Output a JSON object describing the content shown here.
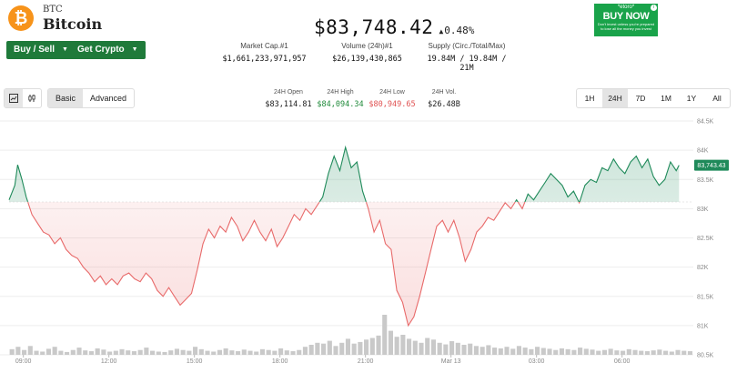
{
  "coin": {
    "symbol": "BTC",
    "name": "Bitcoin",
    "logo_glyph": "₿",
    "logo_color": "#f7931a"
  },
  "buttons": {
    "buy_sell": "Buy / Sell",
    "get_crypto": "Get Crypto"
  },
  "price": {
    "value": "$83,748.42",
    "change": "0.48%",
    "change_icon": "triangle-up-icon"
  },
  "stats": {
    "market_cap_label": "Market Cap.#1",
    "market_cap_value": "$1,661,233,971,957",
    "volume_label": "Volume (24h)#1",
    "volume_value": "$26,139,430,865",
    "supply_label": "Supply (Circ./Total/Max)",
    "supply_value": "19.84M / 19.84M / 21M"
  },
  "ad": {
    "brand": "*etoro*",
    "cta": "BUY NOW",
    "warning": "Don't invest unless you're prepared to lose all the money you invest",
    "adchoice_icon": "info-icon",
    "color": "#19a34a"
  },
  "controls": {
    "chart_icons": [
      "line-chart-icon",
      "candlestick-icon"
    ],
    "modes": [
      "Basic",
      "Advanced"
    ],
    "active_mode": "Basic",
    "ranges": [
      "1H",
      "24H",
      "7D",
      "1M",
      "1Y",
      "All"
    ],
    "active_range": "24H"
  },
  "ohlc": {
    "open_label": "24H Open",
    "open_value": "$83,114.81",
    "high_label": "24H High",
    "high_value": "$84,094.34",
    "low_label": "24H Low",
    "low_value": "$80,949.65",
    "vol_label": "24H Vol.",
    "vol_value": "$26.48B",
    "high_color": "#1f8a3a",
    "low_color": "#e05252"
  },
  "chart_data": {
    "type": "line",
    "baseline": 83114.81,
    "last_value_label": "83,743.43",
    "up_color": "#1f8a5a",
    "down_color": "#e86a6a",
    "ylim": [
      80500,
      84500
    ],
    "y_ticks": [
      84500,
      84000,
      83500,
      83000,
      82500,
      82000,
      81500,
      81000,
      80500
    ],
    "y_tick_labels": [
      "84.5K",
      "84K",
      "83.5K",
      "83K",
      "82.5K",
      "82K",
      "81.5K",
      "81K",
      "80.5K"
    ],
    "x_tick_labels": [
      "09:00",
      "12:00",
      "15:00",
      "18:00",
      "21:00",
      "Mar 13",
      "03:00",
      "06:00"
    ],
    "x_tick_hours": [
      0,
      3,
      6,
      9,
      12,
      15,
      18,
      21
    ],
    "x_range_hours": [
      -0.5,
      23.5
    ],
    "grid": true,
    "points": [
      [
        -0.5,
        83150
      ],
      [
        -0.3,
        83400
      ],
      [
        -0.2,
        83750
      ],
      [
        -0.05,
        83500
      ],
      [
        0.1,
        83200
      ],
      [
        0.3,
        82900
      ],
      [
        0.5,
        82750
      ],
      [
        0.7,
        82600
      ],
      [
        0.9,
        82550
      ],
      [
        1.1,
        82400
      ],
      [
        1.3,
        82500
      ],
      [
        1.5,
        82300
      ],
      [
        1.7,
        82200
      ],
      [
        1.9,
        82150
      ],
      [
        2.1,
        82000
      ],
      [
        2.3,
        81900
      ],
      [
        2.5,
        81750
      ],
      [
        2.7,
        81850
      ],
      [
        2.9,
        81700
      ],
      [
        3.1,
        81800
      ],
      [
        3.3,
        81700
      ],
      [
        3.5,
        81850
      ],
      [
        3.7,
        81900
      ],
      [
        3.9,
        81800
      ],
      [
        4.1,
        81750
      ],
      [
        4.3,
        81900
      ],
      [
        4.5,
        81800
      ],
      [
        4.7,
        81600
      ],
      [
        4.9,
        81500
      ],
      [
        5.1,
        81650
      ],
      [
        5.3,
        81500
      ],
      [
        5.5,
        81350
      ],
      [
        5.7,
        81450
      ],
      [
        5.9,
        81550
      ],
      [
        6.1,
        81950
      ],
      [
        6.3,
        82400
      ],
      [
        6.5,
        82650
      ],
      [
        6.7,
        82500
      ],
      [
        6.9,
        82700
      ],
      [
        7.1,
        82600
      ],
      [
        7.3,
        82850
      ],
      [
        7.5,
        82700
      ],
      [
        7.7,
        82450
      ],
      [
        7.9,
        82600
      ],
      [
        8.1,
        82800
      ],
      [
        8.3,
        82600
      ],
      [
        8.5,
        82450
      ],
      [
        8.7,
        82650
      ],
      [
        8.9,
        82350
      ],
      [
        9.1,
        82500
      ],
      [
        9.3,
        82700
      ],
      [
        9.5,
        82900
      ],
      [
        9.7,
        82800
      ],
      [
        9.9,
        83000
      ],
      [
        10.1,
        82900
      ],
      [
        10.3,
        83050
      ],
      [
        10.5,
        83200
      ],
      [
        10.7,
        83600
      ],
      [
        10.9,
        83900
      ],
      [
        11.1,
        83650
      ],
      [
        11.3,
        84050
      ],
      [
        11.5,
        83700
      ],
      [
        11.7,
        83800
      ],
      [
        11.9,
        83300
      ],
      [
        12.1,
        83000
      ],
      [
        12.3,
        82600
      ],
      [
        12.5,
        82800
      ],
      [
        12.7,
        82400
      ],
      [
        12.9,
        82300
      ],
      [
        13.1,
        81600
      ],
      [
        13.3,
        81400
      ],
      [
        13.5,
        81000
      ],
      [
        13.7,
        81150
      ],
      [
        13.9,
        81500
      ],
      [
        14.1,
        81900
      ],
      [
        14.3,
        82300
      ],
      [
        14.5,
        82700
      ],
      [
        14.7,
        82800
      ],
      [
        14.9,
        82600
      ],
      [
        15.1,
        82800
      ],
      [
        15.3,
        82500
      ],
      [
        15.5,
        82100
      ],
      [
        15.7,
        82300
      ],
      [
        15.9,
        82600
      ],
      [
        16.1,
        82700
      ],
      [
        16.3,
        82850
      ],
      [
        16.5,
        82800
      ],
      [
        16.7,
        82950
      ],
      [
        16.9,
        83100
      ],
      [
        17.1,
        83000
      ],
      [
        17.3,
        83150
      ],
      [
        17.5,
        83000
      ],
      [
        17.7,
        83250
      ],
      [
        17.9,
        83150
      ],
      [
        18.1,
        83300
      ],
      [
        18.3,
        83450
      ],
      [
        18.5,
        83600
      ],
      [
        18.7,
        83500
      ],
      [
        18.9,
        83400
      ],
      [
        19.1,
        83200
      ],
      [
        19.3,
        83300
      ],
      [
        19.5,
        83100
      ],
      [
        19.7,
        83400
      ],
      [
        19.9,
        83500
      ],
      [
        20.1,
        83450
      ],
      [
        20.3,
        83700
      ],
      [
        20.5,
        83650
      ],
      [
        20.7,
        83850
      ],
      [
        20.9,
        83700
      ],
      [
        21.1,
        83600
      ],
      [
        21.3,
        83800
      ],
      [
        21.5,
        83900
      ],
      [
        21.7,
        83700
      ],
      [
        21.9,
        83850
      ],
      [
        22.1,
        83550
      ],
      [
        22.3,
        83400
      ],
      [
        22.5,
        83500
      ],
      [
        22.7,
        83800
      ],
      [
        22.9,
        83650
      ],
      [
        23.0,
        83743
      ]
    ],
    "volumes": [
      0.14,
      0.2,
      0.12,
      0.22,
      0.1,
      0.08,
      0.15,
      0.2,
      0.1,
      0.07,
      0.12,
      0.18,
      0.11,
      0.09,
      0.16,
      0.13,
      0.08,
      0.1,
      0.14,
      0.11,
      0.09,
      0.12,
      0.18,
      0.1,
      0.08,
      0.07,
      0.11,
      0.15,
      0.12,
      0.1,
      0.2,
      0.14,
      0.1,
      0.08,
      0.12,
      0.16,
      0.11,
      0.09,
      0.13,
      0.1,
      0.08,
      0.14,
      0.12,
      0.1,
      0.16,
      0.11,
      0.09,
      0.12,
      0.2,
      0.25,
      0.3,
      0.28,
      0.35,
      0.22,
      0.3,
      0.4,
      0.28,
      0.32,
      0.38,
      0.42,
      0.48,
      1.0,
      0.6,
      0.45,
      0.5,
      0.4,
      0.35,
      0.3,
      0.42,
      0.38,
      0.3,
      0.26,
      0.34,
      0.3,
      0.25,
      0.28,
      0.22,
      0.2,
      0.24,
      0.18,
      0.16,
      0.2,
      0.15,
      0.22,
      0.18,
      0.14,
      0.2,
      0.17,
      0.15,
      0.12,
      0.16,
      0.14,
      0.12,
      0.18,
      0.15,
      0.13,
      0.1,
      0.12,
      0.15,
      0.11,
      0.1,
      0.14,
      0.12,
      0.1,
      0.09,
      0.11,
      0.13,
      0.1,
      0.08,
      0.12,
      0.1,
      0.09
    ]
  }
}
